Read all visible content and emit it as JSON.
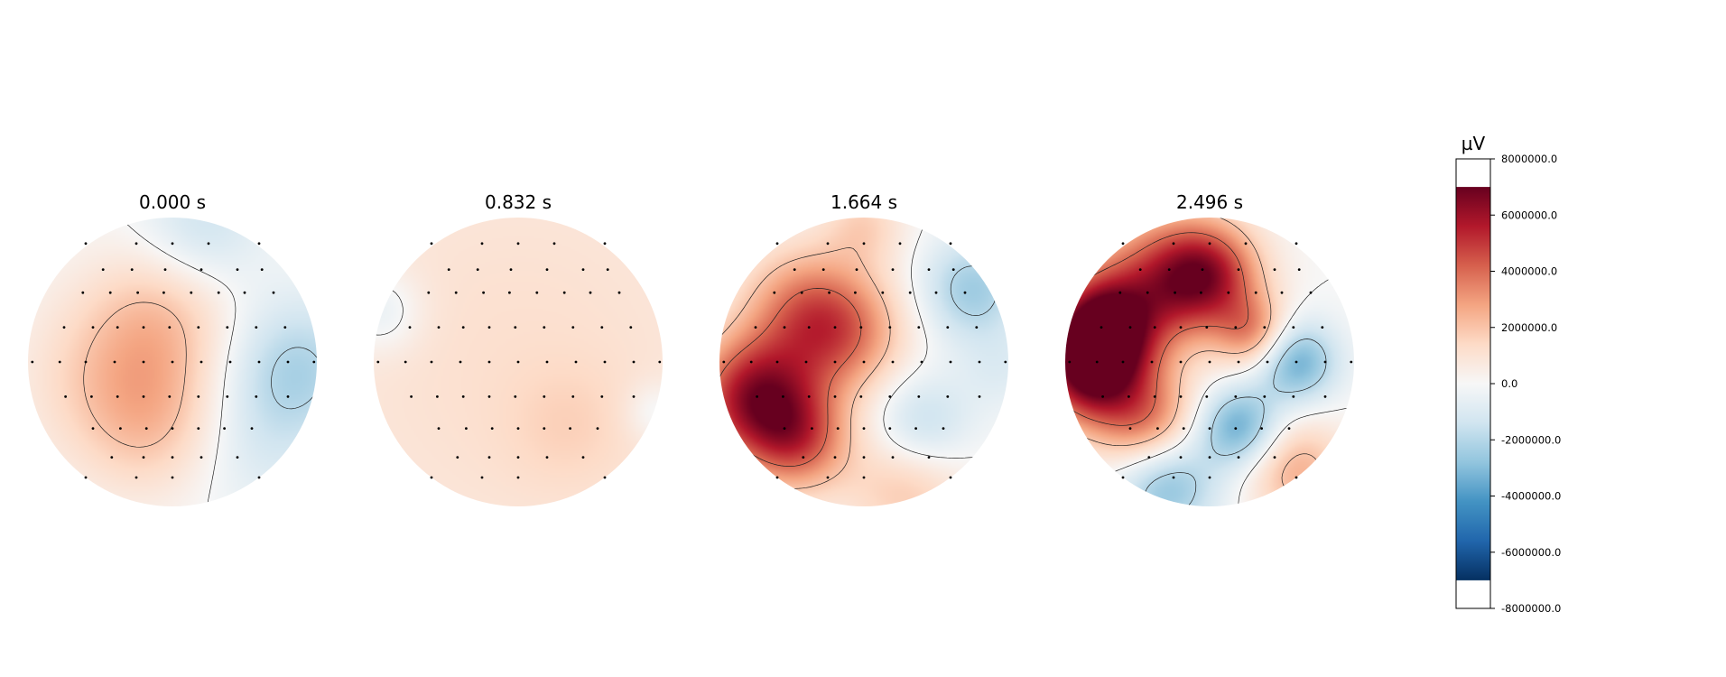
{
  "chart_data": {
    "type": "heatmap",
    "subtype": "eeg-topomap-series",
    "colormap": "RdBu_r",
    "colors": {
      "neg_max": "#053061",
      "neg": "#2166ac",
      "neutral": "#f7f7f7",
      "pos": "#d6604d",
      "pos_max": "#67001f"
    },
    "maps": [
      {
        "title": "0.000 s",
        "level_summary": "mild positive on left and center (~2000000), mild negative on right edge (~-2000000)",
        "blobs": [
          {
            "u": -0.35,
            "v": 0.1,
            "sigma": 0.45,
            "amp": 1900000
          },
          {
            "u": -0.05,
            "v": -0.35,
            "sigma": 0.35,
            "amp": 1300000
          },
          {
            "u": -0.1,
            "v": 0.45,
            "sigma": 0.35,
            "amp": 1200000
          },
          {
            "u": 0.85,
            "v": 0.05,
            "sigma": 0.35,
            "amp": -2200000
          },
          {
            "u": 0.2,
            "v": -0.92,
            "sigma": 0.3,
            "amp": -1500000
          },
          {
            "u": 0.55,
            "v": 0.6,
            "sigma": 0.35,
            "amp": -900000
          }
        ]
      },
      {
        "title": "0.832 s",
        "level_summary": "near-uniform weak positive (~1000000)",
        "blobs": [
          {
            "u": 0.0,
            "v": 0.0,
            "sigma": 1.5,
            "amp": 1150000
          },
          {
            "u": 0.35,
            "v": 0.45,
            "sigma": 0.3,
            "amp": 600000
          },
          {
            "u": -0.95,
            "v": -0.35,
            "sigma": 0.2,
            "amp": -1300000
          },
          {
            "u": 0.95,
            "v": 0.35,
            "sigma": 0.15,
            "amp": -1000000
          }
        ]
      },
      {
        "title": "1.664 s",
        "level_summary": "strong positive on left (~6000000), negative patches on right (~-2000000)",
        "blobs": [
          {
            "u": -0.75,
            "v": 0.25,
            "sigma": 0.3,
            "amp": 6000000
          },
          {
            "u": -0.45,
            "v": 0.55,
            "sigma": 0.25,
            "amp": 3500000
          },
          {
            "u": -0.15,
            "v": -0.2,
            "sigma": 0.3,
            "amp": 3500000
          },
          {
            "u": -0.45,
            "v": -0.4,
            "sigma": 0.3,
            "amp": 2500000
          },
          {
            "u": 0.75,
            "v": -0.5,
            "sigma": 0.25,
            "amp": -2500000
          },
          {
            "u": 0.4,
            "v": 0.45,
            "sigma": 0.25,
            "amp": -2000000
          },
          {
            "u": 0.95,
            "v": 0.05,
            "sigma": 0.2,
            "amp": -800000
          },
          {
            "u": 0.3,
            "v": 0.85,
            "sigma": 0.3,
            "amp": 2000000
          },
          {
            "u": 0.0,
            "v": -0.95,
            "sigma": 0.2,
            "amp": 1500000
          }
        ]
      },
      {
        "title": "2.496 s",
        "level_summary": "strong positive on left (~7000000), several negative patches on right and bottom (~-3000000)",
        "blobs": [
          {
            "u": -0.75,
            "v": -0.2,
            "sigma": 0.25,
            "amp": 7000000
          },
          {
            "u": -0.85,
            "v": 0.1,
            "sigma": 0.25,
            "amp": 5000000
          },
          {
            "u": -0.45,
            "v": 0.4,
            "sigma": 0.25,
            "amp": 3500000
          },
          {
            "u": 0.0,
            "v": -0.6,
            "sigma": 0.25,
            "amp": 4000000
          },
          {
            "u": -0.2,
            "v": -0.6,
            "sigma": 0.3,
            "amp": 2500000
          },
          {
            "u": 0.3,
            "v": -0.2,
            "sigma": 0.18,
            "amp": 3000000
          },
          {
            "u": 0.6,
            "v": 0.0,
            "sigma": 0.2,
            "amp": -3500000
          },
          {
            "u": 0.2,
            "v": 0.45,
            "sigma": 0.2,
            "amp": -3500000
          },
          {
            "u": -0.3,
            "v": 0.85,
            "sigma": 0.25,
            "amp": -3000000
          },
          {
            "u": 0.6,
            "v": 0.75,
            "sigma": 0.25,
            "amp": 2500000
          },
          {
            "u": -0.5,
            "v": -0.5,
            "sigma": 0.35,
            "amp": 2500000
          }
        ]
      }
    ],
    "colorbar": {
      "unit": "µV",
      "vmin": -7000000,
      "vmax": 7000000,
      "axis_range": [
        -8000000,
        8000000
      ],
      "ticks": [
        "8000000.0",
        "6000000.0",
        "4000000.0",
        "2000000.0",
        "0.0",
        "-2000000.0",
        "-4000000.0",
        "-6000000.0",
        "-8000000.0"
      ]
    },
    "sensors_visible": true,
    "contours": true,
    "xlabel": "",
    "ylabel": ""
  }
}
